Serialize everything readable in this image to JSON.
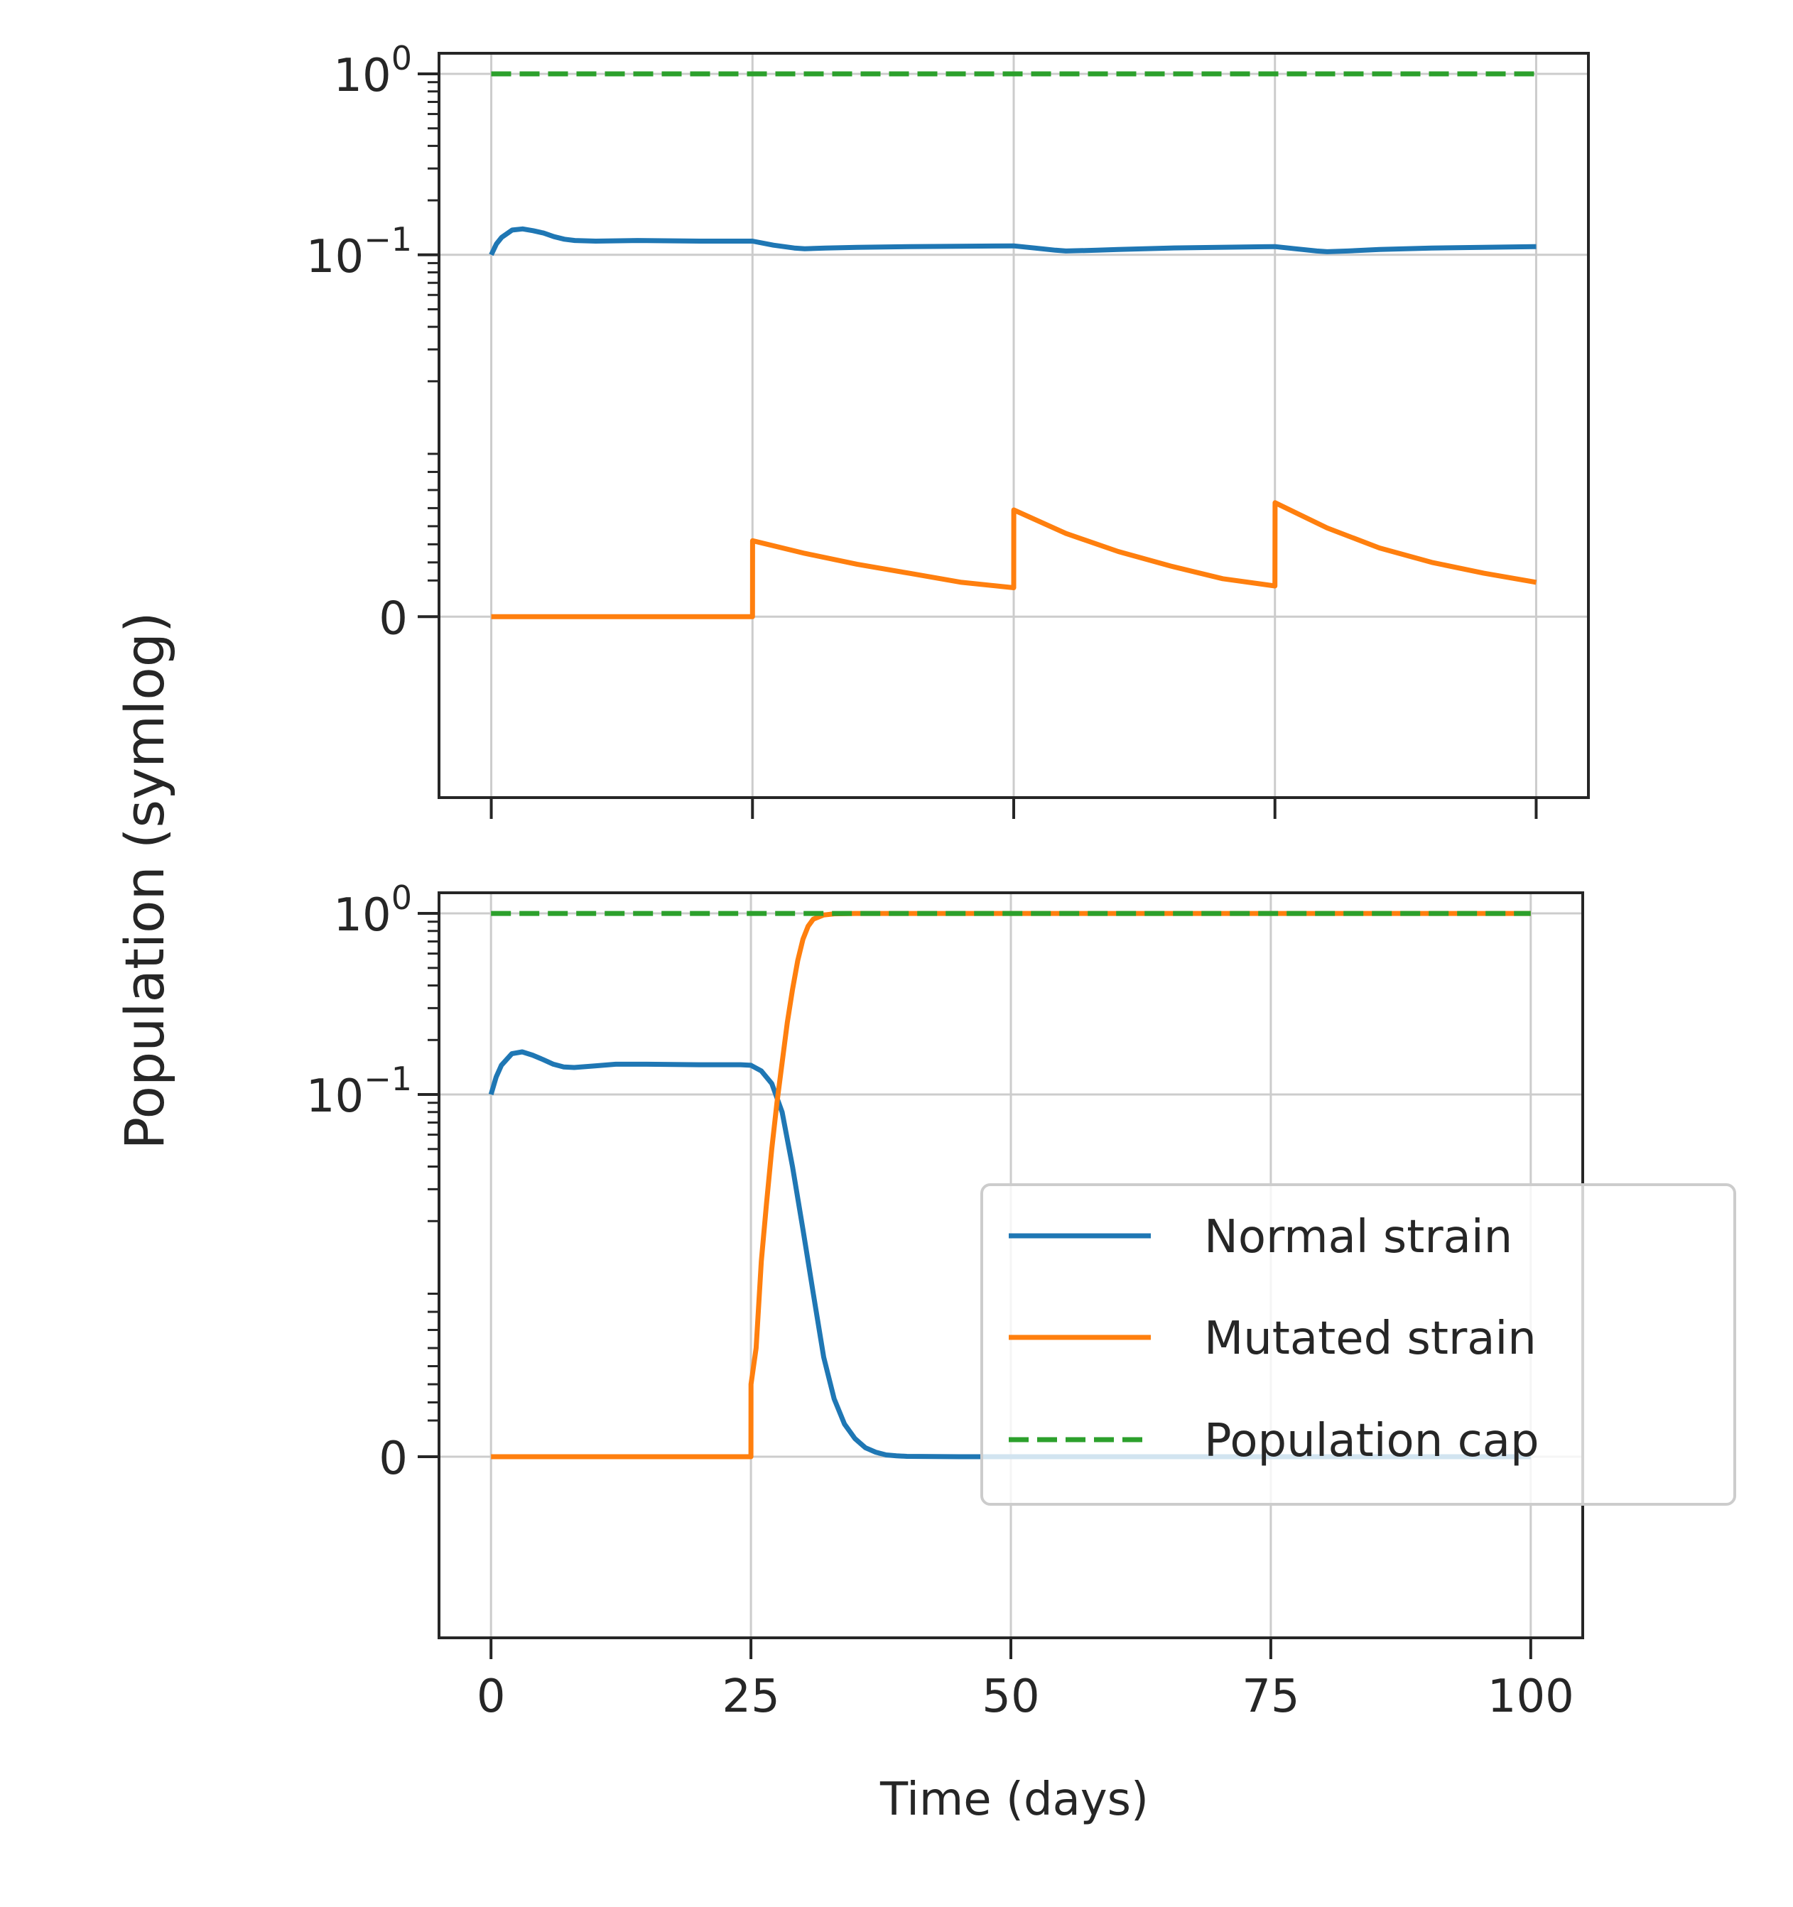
{
  "figure": {
    "ylabel": "Population (symlog)",
    "xlabel": "Time (days)"
  },
  "colors": {
    "normal": "#1f77b4",
    "mutated": "#ff7f0e",
    "cap": "#2ca02c",
    "grid": "#cccccc",
    "axes": "#262626"
  },
  "legend": {
    "placement": "lower-right of bottom panel",
    "entries": [
      "Normal strain",
      "Mutated strain",
      "Population cap"
    ]
  },
  "chart_data": [
    {
      "type": "line",
      "panel": "top",
      "xlabel": "",
      "ylabel": "Population (symlog)",
      "yscale": "symlog",
      "grid": true,
      "xlim": [
        -5,
        105
      ],
      "ylim": [
        -0.01,
        1.3
      ],
      "xticks": [
        0,
        25,
        50,
        75,
        100
      ],
      "xticklabels_shown": false,
      "yticks": [
        0,
        0.1,
        1
      ],
      "yticklabels": [
        "0",
        "10^{-1}",
        "10^0"
      ],
      "series": [
        {
          "name": "Normal strain",
          "x": [
            0,
            0.5,
            1,
            2,
            3,
            4,
            5,
            6,
            7,
            8,
            10,
            14,
            20,
            25,
            27,
            29,
            30,
            32,
            35,
            40,
            50,
            52,
            54,
            55,
            58,
            60,
            65,
            75,
            77,
            79,
            80,
            82,
            85,
            90,
            100
          ],
          "y": [
            0.1,
            0.115,
            0.125,
            0.137,
            0.139,
            0.136,
            0.132,
            0.126,
            0.122,
            0.12,
            0.119,
            0.12,
            0.119,
            0.119,
            0.113,
            0.109,
            0.108,
            0.109,
            0.11,
            0.111,
            0.112,
            0.109,
            0.106,
            0.105,
            0.106,
            0.107,
            0.109,
            0.111,
            0.108,
            0.105,
            0.104,
            0.105,
            0.107,
            0.109,
            0.111
          ]
        },
        {
          "name": "Mutated strain",
          "x": [
            0,
            24.99,
            25,
            25.01,
            30,
            35,
            40,
            45,
            50,
            50.01,
            55,
            60,
            65,
            70,
            75,
            75.01,
            80,
            85,
            90,
            95,
            100
          ],
          "y": [
            0,
            0,
            0,
            0.0042,
            0.0035,
            0.0029,
            0.0024,
            0.0019,
            0.0016,
            0.0059,
            0.0046,
            0.0036,
            0.0028,
            0.0021,
            0.0017,
            0.0063,
            0.0049,
            0.0038,
            0.003,
            0.0024,
            0.0019
          ]
        },
        {
          "name": "Population cap",
          "x": [
            0,
            100
          ],
          "y": [
            1,
            1
          ],
          "dashed": true
        }
      ]
    },
    {
      "type": "line",
      "panel": "bottom",
      "xlabel": "Time (days)",
      "ylabel": "Population (symlog)",
      "yscale": "symlog",
      "grid": true,
      "xlim": [
        -5,
        105
      ],
      "ylim": [
        -0.01,
        1.3
      ],
      "xticks": [
        0,
        25,
        50,
        75,
        100
      ],
      "xticklabels": [
        "0",
        "25",
        "50",
        "75",
        "100"
      ],
      "yticks": [
        0,
        0.1,
        1
      ],
      "yticklabels": [
        "0",
        "10^{-1}",
        "10^0"
      ],
      "series": [
        {
          "name": "Normal strain",
          "x": [
            0,
            0.5,
            1,
            2,
            3,
            4,
            5,
            6,
            7,
            8,
            10,
            12,
            15,
            20,
            24,
            25,
            26,
            27,
            28,
            29,
            30,
            31,
            32,
            33,
            34,
            35,
            36,
            37,
            38,
            39,
            40,
            45,
            50,
            100
          ],
          "y": [
            0.1,
            0.125,
            0.145,
            0.168,
            0.172,
            0.165,
            0.156,
            0.147,
            0.142,
            0.141,
            0.144,
            0.147,
            0.147,
            0.146,
            0.146,
            0.145,
            0.135,
            0.115,
            0.08,
            0.04,
            0.018,
            0.009,
            0.0055,
            0.0032,
            0.0018,
            0.001,
            0.0005,
            0.00025,
            0.0001,
            5e-05,
            2e-05,
            0,
            0,
            0
          ]
        },
        {
          "name": "Mutated strain",
          "x": [
            0,
            24.99,
            25,
            25.01,
            25.5,
            26,
            26.5,
            27,
            27.5,
            28,
            28.5,
            29,
            29.5,
            30,
            30.5,
            31,
            32,
            33,
            35,
            40,
            100
          ],
          "y": [
            0,
            0,
            0,
            0.004,
            0.006,
            0.012,
            0.025,
            0.05,
            0.09,
            0.15,
            0.25,
            0.38,
            0.55,
            0.72,
            0.85,
            0.93,
            0.98,
            0.995,
            1.0,
            1.0,
            1.0
          ]
        },
        {
          "name": "Population cap",
          "x": [
            0,
            100
          ],
          "y": [
            1,
            1
          ],
          "dashed": true
        }
      ]
    }
  ]
}
